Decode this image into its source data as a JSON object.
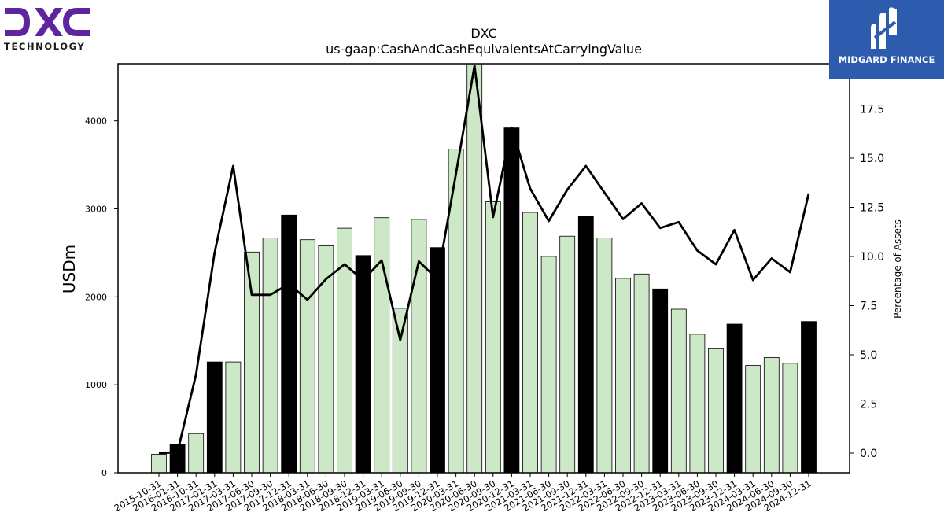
{
  "branding": {
    "company_logo_text": "DXC",
    "company_logo_subtext": "TECHNOLOGY",
    "publisher_name": "MIDGARD FINANCE",
    "company_logo_color": "#5f259f",
    "publisher_bg_color": "#2d5bad"
  },
  "chart_data": {
    "type": "bar",
    "title": "DXC",
    "subtitle": "us-gaap:CashAndCashEquivalentsAtCarryingValue",
    "ylabel": "USDm",
    "y2label": "Percentage of Assets",
    "ylim": [
      0,
      4650
    ],
    "y2lim": [
      -1.0,
      19.8
    ],
    "yticks": [
      0,
      1000,
      2000,
      3000,
      4000
    ],
    "y2ticks": [
      "0.0",
      "2.5",
      "5.0",
      "7.5",
      "10.0",
      "12.5",
      "15.0",
      "17.5"
    ],
    "grid": false,
    "categories": [
      "2015-10-31",
      "2016-01-31",
      "2016-10-31",
      "2017-01-31",
      "2017-03-31",
      "2017-06-30",
      "2017-09-30",
      "2017-12-31",
      "2018-03-31",
      "2018-06-30",
      "2018-09-30",
      "2018-12-31",
      "2019-03-31",
      "2019-06-30",
      "2019-09-30",
      "2019-12-31",
      "2020-03-31",
      "2020-06-30",
      "2020-09-30",
      "2020-12-31",
      "2021-03-31",
      "2021-06-30",
      "2021-09-30",
      "2021-12-31",
      "2022-03-31",
      "2022-06-30",
      "2022-09-30",
      "2022-12-31",
      "2023-03-31",
      "2023-06-30",
      "2023-09-30",
      "2023-12-31",
      "2024-03-31",
      "2024-06-30",
      "2024-09-30",
      "2024-12-31"
    ],
    "bar_series": {
      "name": "Cash and cash equivalents",
      "values": [
        210,
        320,
        445,
        1260,
        1260,
        2510,
        2670,
        2930,
        2650,
        2580,
        2780,
        2470,
        2900,
        1870,
        2880,
        2560,
        3680,
        4650,
        3080,
        3920,
        2960,
        2460,
        2690,
        2920,
        2670,
        2210,
        2260,
        2090,
        1860,
        1575,
        1410,
        1690,
        1220,
        1310,
        1245,
        1720
      ],
      "fiscal_year_end": [
        false,
        true,
        false,
        true,
        false,
        false,
        false,
        true,
        false,
        false,
        false,
        true,
        false,
        false,
        false,
        true,
        false,
        false,
        false,
        true,
        false,
        false,
        false,
        true,
        false,
        false,
        false,
        true,
        false,
        false,
        false,
        true,
        false,
        false,
        false,
        true
      ],
      "color_quarter": "#cde8c6",
      "color_year_end": "#000000"
    },
    "line_series": {
      "name": "Percentage of Assets",
      "values": [
        0.0,
        0.05,
        4.0,
        10.2,
        14.6,
        8.05,
        8.05,
        8.6,
        7.8,
        8.85,
        9.6,
        8.8,
        9.8,
        5.75,
        9.75,
        8.85,
        14.2,
        19.7,
        12.0,
        16.55,
        13.45,
        11.8,
        13.4,
        14.6,
        13.25,
        11.9,
        12.7,
        11.45,
        11.75,
        10.3,
        9.6,
        11.35,
        8.8,
        9.9,
        9.2,
        13.2
      ],
      "color": "#000000"
    }
  }
}
